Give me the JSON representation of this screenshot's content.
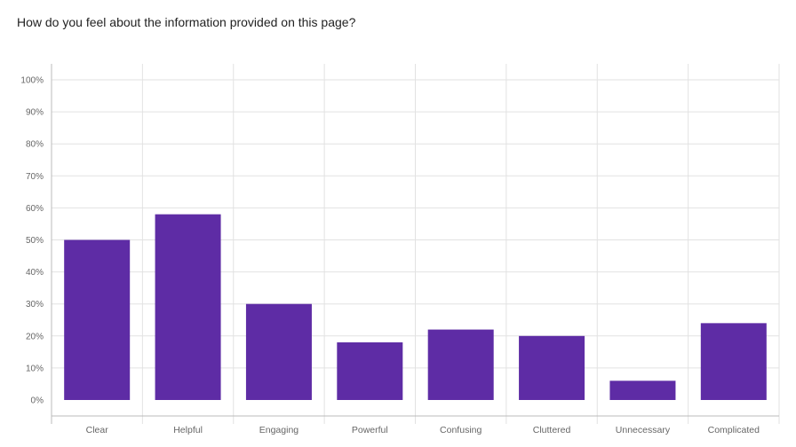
{
  "question": "How do you feel about the information provided on this page?",
  "chart_data": {
    "type": "bar",
    "title": "How do you feel about the information provided on this page?",
    "categories": [
      "Clear",
      "Helpful",
      "Engaging",
      "Powerful",
      "Confusing",
      "Cluttered",
      "Unnecessary",
      "Complicated"
    ],
    "values": [
      50,
      58,
      30,
      18,
      22,
      20,
      6,
      24
    ],
    "yticks": [
      "0%",
      "10%",
      "20%",
      "30%",
      "40%",
      "50%",
      "60%",
      "70%",
      "80%",
      "90%",
      "100%"
    ],
    "ylim": [
      0,
      100
    ],
    "xlabel": "",
    "ylabel": "",
    "grid": true,
    "bar_color": "#5e2ca5"
  }
}
